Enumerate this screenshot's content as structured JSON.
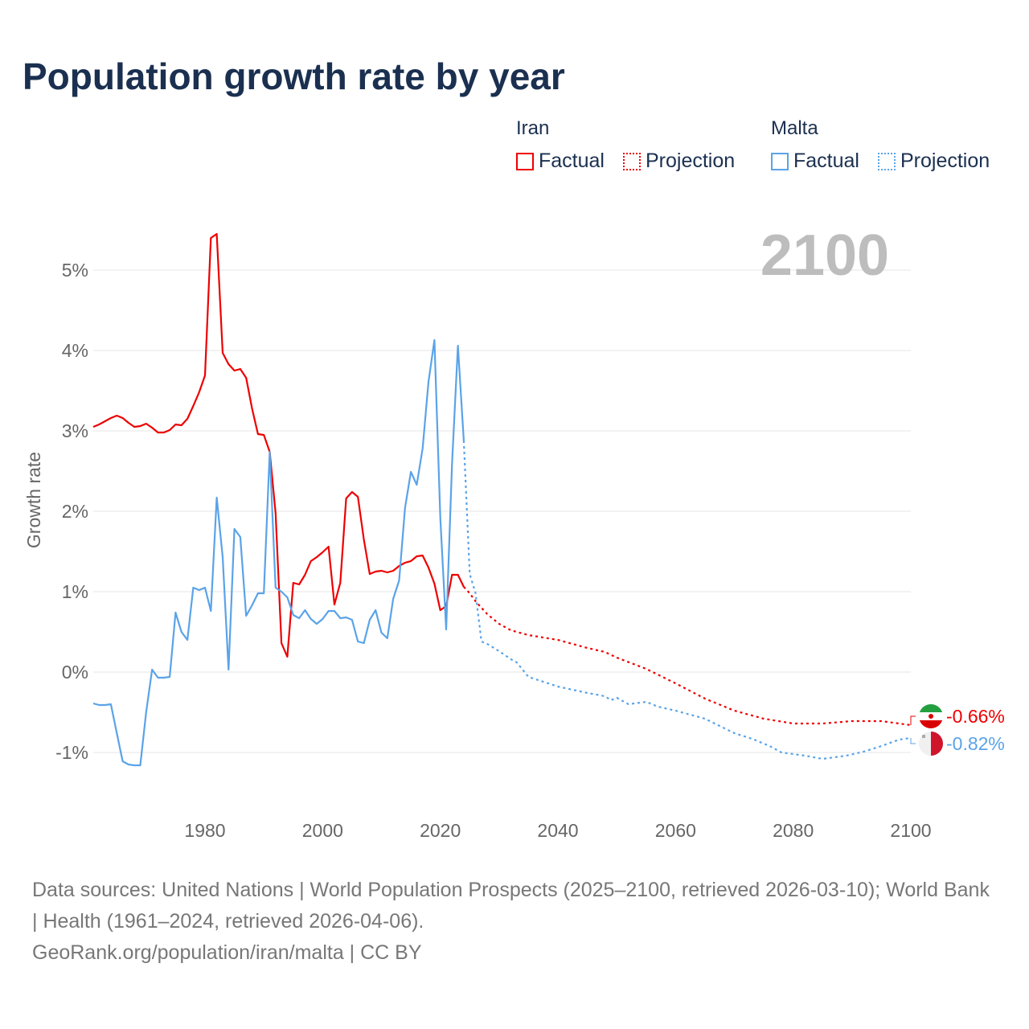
{
  "title": "Population growth rate by year",
  "legend": {
    "groups": [
      {
        "name": "Iran",
        "color": "#ee0000",
        "items": [
          "Factual",
          "Projection"
        ]
      },
      {
        "name": "Malta",
        "color": "#5aa3e8",
        "items": [
          "Factual",
          "Projection"
        ]
      }
    ]
  },
  "year_overlay": "2100",
  "sources": {
    "line1": "Data sources: United Nations | World Population Prospects (2025–2100, retrieved 2026-03-10); World Bank | Health (1961–2024, retrieved 2026-04-06).",
    "line2": "GeoRank.org/population/iran/malta | CC BY"
  },
  "chart_data": {
    "type": "line",
    "title": "Population growth rate by year",
    "xlabel": "",
    "ylabel": "Growth rate",
    "xlim": [
      1961,
      2100
    ],
    "ylim": [
      -1.7,
      6.0
    ],
    "xticks": [
      1980,
      2000,
      2020,
      2040,
      2060,
      2080,
      2100
    ],
    "yticks": [
      -1,
      0,
      1,
      2,
      3,
      4,
      5
    ],
    "ytick_labels": [
      "-1%",
      "0%",
      "1%",
      "2%",
      "3%",
      "4%",
      "5%"
    ],
    "grid": true,
    "series": [
      {
        "name": "Iran",
        "color": "#ee0000",
        "end_label": "-0.66%",
        "factual": {
          "x": [
            1961,
            1962,
            1963,
            1964,
            1965,
            1966,
            1967,
            1968,
            1969,
            1970,
            1971,
            1972,
            1973,
            1974,
            1975,
            1976,
            1977,
            1978,
            1979,
            1980,
            1981,
            1982,
            1983,
            1984,
            1985,
            1986,
            1987,
            1988,
            1989,
            1990,
            1991,
            1992,
            1993,
            1994,
            1995,
            1996,
            1997,
            1998,
            1999,
            2000,
            2001,
            2002,
            2003,
            2004,
            2005,
            2006,
            2007,
            2008,
            2009,
            2010,
            2011,
            2012,
            2013,
            2014,
            2015,
            2016,
            2017,
            2018,
            2019,
            2020,
            2021,
            2022,
            2023,
            2024
          ],
          "y": [
            3.05,
            3.08,
            3.12,
            3.16,
            3.19,
            3.16,
            3.1,
            3.05,
            3.06,
            3.09,
            3.04,
            2.98,
            2.98,
            3.01,
            3.08,
            3.07,
            3.15,
            3.31,
            3.48,
            3.69,
            5.4,
            5.45,
            3.97,
            3.83,
            3.75,
            3.77,
            3.66,
            3.28,
            2.96,
            2.95,
            2.74,
            1.98,
            0.36,
            0.19,
            1.11,
            1.09,
            1.21,
            1.38,
            1.43,
            1.49,
            1.56,
            0.84,
            1.11,
            2.16,
            2.24,
            2.18,
            1.65,
            1.22,
            1.25,
            1.26,
            1.24,
            1.26,
            1.32,
            1.36,
            1.38,
            1.44,
            1.45,
            1.3,
            1.1,
            0.77,
            0.82,
            1.21,
            1.21,
            1.06
          ]
        },
        "projection": {
          "x": [
            2024,
            2025,
            2026,
            2028,
            2030,
            2032,
            2035,
            2040,
            2045,
            2048,
            2050,
            2055,
            2060,
            2065,
            2070,
            2075,
            2080,
            2085,
            2090,
            2095,
            2100
          ],
          "y": [
            1.06,
            0.98,
            0.88,
            0.72,
            0.6,
            0.52,
            0.46,
            0.4,
            0.3,
            0.25,
            0.18,
            0.04,
            -0.14,
            -0.33,
            -0.48,
            -0.58,
            -0.64,
            -0.64,
            -0.61,
            -0.61,
            -0.66
          ]
        }
      },
      {
        "name": "Malta",
        "color": "#5aa3e8",
        "end_label": "-0.82%",
        "factual": {
          "x": [
            1961,
            1962,
            1963,
            1964,
            1965,
            1966,
            1967,
            1968,
            1969,
            1970,
            1971,
            1972,
            1973,
            1974,
            1975,
            1976,
            1977,
            1978,
            1979,
            1980,
            1981,
            1982,
            1983,
            1984,
            1985,
            1986,
            1987,
            1988,
            1989,
            1990,
            1991,
            1992,
            1993,
            1994,
            1995,
            1996,
            1997,
            1998,
            1999,
            2000,
            2001,
            2002,
            2003,
            2004,
            2005,
            2006,
            2007,
            2008,
            2009,
            2010,
            2011,
            2012,
            2013,
            2014,
            2015,
            2016,
            2017,
            2018,
            2019,
            2020,
            2021,
            2022,
            2023,
            2024
          ],
          "y": [
            -0.39,
            -0.41,
            -0.41,
            -0.4,
            -0.76,
            -1.11,
            -1.15,
            -1.16,
            -1.16,
            -0.5,
            0.03,
            -0.07,
            -0.07,
            -0.06,
            0.74,
            0.5,
            0.4,
            1.05,
            1.02,
            1.05,
            0.76,
            2.17,
            1.43,
            0.03,
            1.78,
            1.68,
            0.7,
            0.83,
            0.98,
            0.98,
            2.74,
            1.05,
            1.0,
            0.93,
            0.71,
            0.67,
            0.77,
            0.66,
            0.6,
            0.66,
            0.76,
            0.76,
            0.67,
            0.68,
            0.65,
            0.38,
            0.36,
            0.65,
            0.77,
            0.49,
            0.42,
            0.91,
            1.14,
            2.04,
            2.49,
            2.33,
            2.78,
            3.61,
            4.13,
            1.92,
            0.53,
            2.59,
            4.06,
            2.88
          ]
        },
        "projection": {
          "x": [
            2024,
            2025,
            2026,
            2027,
            2028,
            2030,
            2032,
            2033,
            2035,
            2040,
            2045,
            2048,
            2049,
            2050,
            2052,
            2055,
            2057,
            2060,
            2062,
            2065,
            2070,
            2073,
            2076,
            2078,
            2082,
            2085,
            2089,
            2092,
            2095,
            2098,
            2100
          ],
          "y": [
            2.88,
            1.22,
            0.98,
            0.38,
            0.35,
            0.26,
            0.16,
            0.12,
            -0.06,
            -0.18,
            -0.26,
            -0.3,
            -0.35,
            -0.32,
            -0.4,
            -0.37,
            -0.43,
            -0.48,
            -0.52,
            -0.58,
            -0.76,
            -0.83,
            -0.92,
            -1.0,
            -1.04,
            -1.08,
            -1.04,
            -0.99,
            -0.92,
            -0.84,
            -0.82
          ]
        }
      }
    ]
  }
}
